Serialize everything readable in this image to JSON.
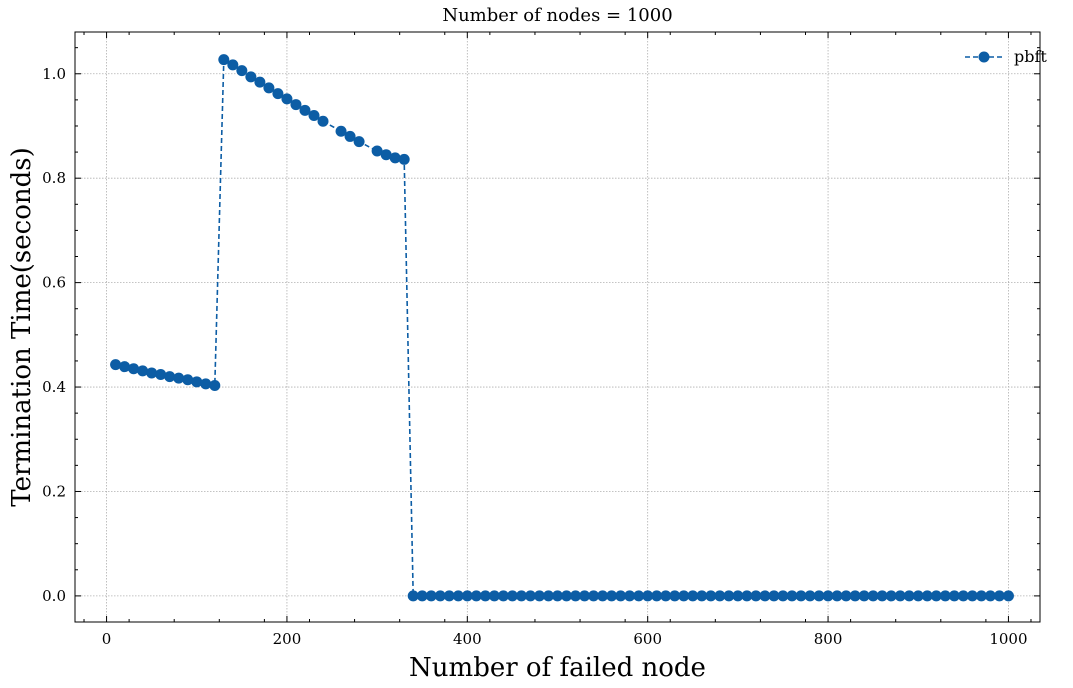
{
  "chart_data": {
    "type": "line",
    "title": "Number of nodes = 1000",
    "xlabel": "Number of failed node",
    "ylabel": "Termination Time(seconds)",
    "xlim": [
      -35,
      1035
    ],
    "ylim": [
      -0.05,
      1.08
    ],
    "xticks": [
      0,
      200,
      400,
      600,
      800,
      1000
    ],
    "yticks": [
      0.0,
      0.2,
      0.4,
      0.6,
      0.8,
      1.0
    ],
    "xtick_labels": [
      "0",
      "200",
      "400",
      "600",
      "800",
      "1000"
    ],
    "ytick_labels": [
      "0.0",
      "0.2",
      "0.4",
      "0.6",
      "0.8",
      "1.0"
    ],
    "grid": true,
    "legend_position": "top-right",
    "series": [
      {
        "name": "pbft",
        "color": "#0C5DA5",
        "line_style": "dashed",
        "marker": "circle",
        "x": [
          10,
          20,
          30,
          40,
          50,
          60,
          70,
          80,
          90,
          100,
          110,
          120,
          130,
          140,
          150,
          160,
          170,
          180,
          190,
          200,
          210,
          220,
          230,
          240,
          260,
          270,
          280,
          300,
          310,
          320,
          330,
          340,
          350,
          360,
          370,
          380,
          390,
          400,
          410,
          420,
          430,
          440,
          450,
          460,
          470,
          480,
          490,
          500,
          510,
          520,
          530,
          540,
          550,
          560,
          570,
          580,
          590,
          600,
          610,
          620,
          630,
          640,
          650,
          660,
          670,
          680,
          690,
          700,
          710,
          720,
          730,
          740,
          750,
          760,
          770,
          780,
          790,
          800,
          810,
          820,
          830,
          840,
          850,
          860,
          870,
          880,
          890,
          900,
          910,
          920,
          930,
          940,
          950,
          960,
          970,
          980,
          990,
          1000
        ],
        "y": [
          0.443,
          0.439,
          0.435,
          0.431,
          0.427,
          0.424,
          0.42,
          0.417,
          0.414,
          0.41,
          0.406,
          0.403,
          1.027,
          1.017,
          1.006,
          0.994,
          0.984,
          0.973,
          0.962,
          0.952,
          0.941,
          0.93,
          0.92,
          0.909,
          0.89,
          0.88,
          0.87,
          0.852,
          0.845,
          0.839,
          0.836,
          0,
          0,
          0,
          0,
          0,
          0,
          0,
          0,
          0,
          0,
          0,
          0,
          0,
          0,
          0,
          0,
          0,
          0,
          0,
          0,
          0,
          0,
          0,
          0,
          0,
          0,
          0,
          0,
          0,
          0,
          0,
          0,
          0,
          0,
          0,
          0,
          0,
          0,
          0,
          0,
          0,
          0,
          0,
          0,
          0,
          0,
          0,
          0,
          0,
          0,
          0,
          0,
          0,
          0,
          0,
          0,
          0,
          0,
          0,
          0,
          0,
          0,
          0,
          0,
          0,
          0,
          0
        ]
      }
    ]
  }
}
